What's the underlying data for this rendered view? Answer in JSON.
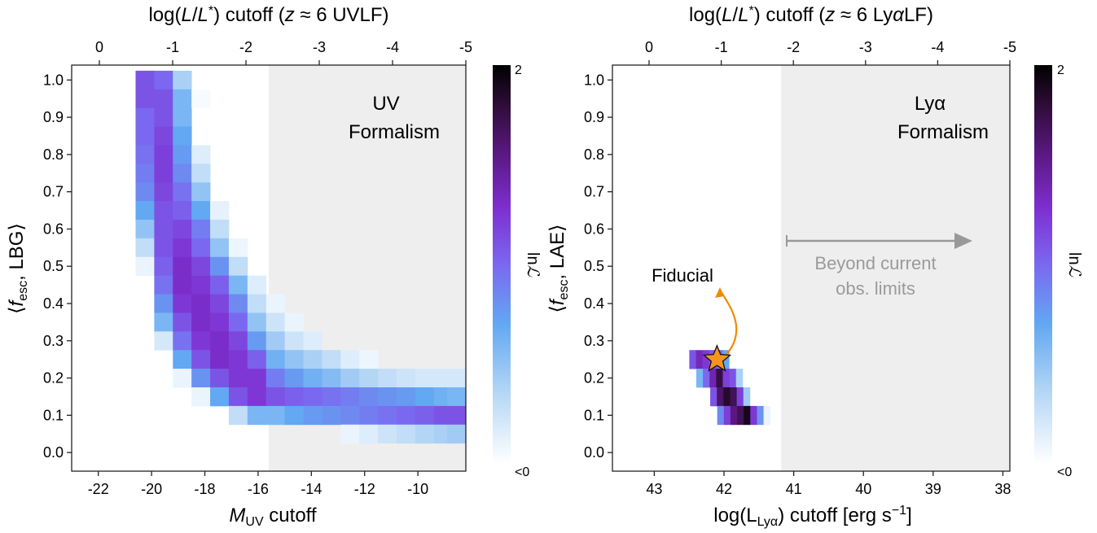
{
  "chart_data": [
    {
      "type": "heatmap",
      "panel": "left",
      "top_axis_label": "log(L/L*) cutoff (z ≈ 6 UVLF)",
      "top_ticks": [
        "0",
        "-1",
        "-2",
        "-3",
        "-4",
        "-5"
      ],
      "xlabel": "M_UV cutoff",
      "xlabel_main": "M",
      "xlabel_sub": "UV",
      "xlabel_rest": " cutoff",
      "x_ticks": [
        "-22",
        "-20",
        "-18",
        "-16",
        "-14",
        "-12",
        "-10"
      ],
      "xlim": [
        -23.0,
        -8.2
      ],
      "ylabel": "⟨f_esc, LBG⟩",
      "ylim": [
        -0.05,
        1.04
      ],
      "y_ticks": [
        "0.0",
        "0.1",
        "0.2",
        "0.3",
        "0.4",
        "0.5",
        "0.6",
        "0.7",
        "0.8",
        "0.9",
        "1.0"
      ],
      "shaded_region_x": [
        -15.6,
        -8.2
      ],
      "annotation": [
        "UV",
        "Formalism"
      ],
      "colorbar": {
        "label": "ln L",
        "max_label": "2",
        "min_label": "<0"
      },
      "cell_width": 0.7,
      "cell_height": 0.05,
      "cells": [
        [
          -20.25,
          1.0,
          0.55
        ],
        [
          -20.25,
          0.95,
          0.55
        ],
        [
          -20.25,
          0.9,
          0.5
        ],
        [
          -20.25,
          0.85,
          0.5
        ],
        [
          -20.25,
          0.8,
          0.48
        ],
        [
          -20.25,
          0.75,
          0.45
        ],
        [
          -20.25,
          0.7,
          0.42
        ],
        [
          -20.25,
          0.65,
          0.35
        ],
        [
          -20.25,
          0.6,
          0.25
        ],
        [
          -20.25,
          0.55,
          0.15
        ],
        [
          -20.25,
          0.5,
          0.05
        ],
        [
          -19.55,
          1.0,
          0.5
        ],
        [
          -19.55,
          0.95,
          0.55
        ],
        [
          -19.55,
          0.9,
          0.55
        ],
        [
          -19.55,
          0.85,
          0.58
        ],
        [
          -19.55,
          0.8,
          0.6
        ],
        [
          -19.55,
          0.75,
          0.6
        ],
        [
          -19.55,
          0.7,
          0.58
        ],
        [
          -19.55,
          0.65,
          0.55
        ],
        [
          -19.55,
          0.6,
          0.55
        ],
        [
          -19.55,
          0.55,
          0.55
        ],
        [
          -19.55,
          0.5,
          0.52
        ],
        [
          -19.55,
          0.45,
          0.48
        ],
        [
          -19.55,
          0.4,
          0.4
        ],
        [
          -19.55,
          0.35,
          0.3
        ],
        [
          -19.55,
          0.3,
          0.1
        ],
        [
          -18.85,
          1.0,
          0.2
        ],
        [
          -18.85,
          0.95,
          0.3
        ],
        [
          -18.85,
          0.9,
          0.3
        ],
        [
          -18.85,
          0.85,
          0.35
        ],
        [
          -18.85,
          0.8,
          0.38
        ],
        [
          -18.85,
          0.75,
          0.42
        ],
        [
          -18.85,
          0.7,
          0.48
        ],
        [
          -18.85,
          0.65,
          0.52
        ],
        [
          -18.85,
          0.6,
          0.58
        ],
        [
          -18.85,
          0.55,
          0.62
        ],
        [
          -18.85,
          0.5,
          0.65
        ],
        [
          -18.85,
          0.45,
          0.65
        ],
        [
          -18.85,
          0.4,
          0.62
        ],
        [
          -18.85,
          0.35,
          0.55
        ],
        [
          -18.85,
          0.3,
          0.48
        ],
        [
          -18.85,
          0.25,
          0.35
        ],
        [
          -18.85,
          0.2,
          0.05
        ],
        [
          -18.15,
          0.95,
          0.02
        ],
        [
          -18.15,
          0.8,
          0.08
        ],
        [
          -18.15,
          0.75,
          0.15
        ],
        [
          -18.15,
          0.7,
          0.25
        ],
        [
          -18.15,
          0.65,
          0.35
        ],
        [
          -18.15,
          0.6,
          0.45
        ],
        [
          -18.15,
          0.55,
          0.5
        ],
        [
          -18.15,
          0.5,
          0.58
        ],
        [
          -18.15,
          0.45,
          0.62
        ],
        [
          -18.15,
          0.4,
          0.65
        ],
        [
          -18.15,
          0.35,
          0.65
        ],
        [
          -18.15,
          0.3,
          0.62
        ],
        [
          -18.15,
          0.25,
          0.55
        ],
        [
          -18.15,
          0.2,
          0.4
        ],
        [
          -18.15,
          0.15,
          0.05
        ],
        [
          -17.45,
          0.65,
          0.06
        ],
        [
          -17.45,
          0.6,
          0.15
        ],
        [
          -17.45,
          0.55,
          0.25
        ],
        [
          -17.45,
          0.5,
          0.4
        ],
        [
          -17.45,
          0.45,
          0.52
        ],
        [
          -17.45,
          0.4,
          0.58
        ],
        [
          -17.45,
          0.35,
          0.62
        ],
        [
          -17.45,
          0.3,
          0.65
        ],
        [
          -17.45,
          0.25,
          0.65
        ],
        [
          -17.45,
          0.2,
          0.55
        ],
        [
          -17.45,
          0.15,
          0.35
        ],
        [
          -16.75,
          0.55,
          0.04
        ],
        [
          -16.75,
          0.5,
          0.15
        ],
        [
          -16.75,
          0.45,
          0.3
        ],
        [
          -16.75,
          0.4,
          0.42
        ],
        [
          -16.75,
          0.35,
          0.5
        ],
        [
          -16.75,
          0.3,
          0.58
        ],
        [
          -16.75,
          0.25,
          0.62
        ],
        [
          -16.75,
          0.2,
          0.62
        ],
        [
          -16.75,
          0.15,
          0.55
        ],
        [
          -16.75,
          0.1,
          0.15
        ],
        [
          -16.05,
          0.45,
          0.08
        ],
        [
          -16.05,
          0.4,
          0.15
        ],
        [
          -16.05,
          0.35,
          0.25
        ],
        [
          -16.05,
          0.3,
          0.38
        ],
        [
          -16.05,
          0.25,
          0.52
        ],
        [
          -16.05,
          0.2,
          0.62
        ],
        [
          -16.05,
          0.15,
          0.62
        ],
        [
          -16.05,
          0.1,
          0.3
        ],
        [
          -15.35,
          0.4,
          0.05
        ],
        [
          -15.35,
          0.35,
          0.12
        ],
        [
          -15.35,
          0.3,
          0.22
        ],
        [
          -15.35,
          0.25,
          0.32
        ],
        [
          -15.35,
          0.2,
          0.45
        ],
        [
          -15.35,
          0.15,
          0.55
        ],
        [
          -15.35,
          0.1,
          0.3
        ],
        [
          -14.65,
          0.35,
          0.05
        ],
        [
          -14.65,
          0.3,
          0.12
        ],
        [
          -14.65,
          0.25,
          0.25
        ],
        [
          -14.65,
          0.2,
          0.38
        ],
        [
          -14.65,
          0.15,
          0.52
        ],
        [
          -14.65,
          0.1,
          0.35
        ],
        [
          -13.95,
          0.3,
          0.08
        ],
        [
          -13.95,
          0.25,
          0.2
        ],
        [
          -13.95,
          0.2,
          0.32
        ],
        [
          -13.95,
          0.15,
          0.5
        ],
        [
          -13.95,
          0.1,
          0.38
        ],
        [
          -13.25,
          0.25,
          0.15
        ],
        [
          -13.25,
          0.2,
          0.28
        ],
        [
          -13.25,
          0.15,
          0.48
        ],
        [
          -13.25,
          0.1,
          0.4
        ],
        [
          -12.55,
          0.25,
          0.08
        ],
        [
          -12.55,
          0.2,
          0.22
        ],
        [
          -12.55,
          0.15,
          0.45
        ],
        [
          -12.55,
          0.1,
          0.42
        ],
        [
          -12.55,
          0.05,
          0.05
        ],
        [
          -11.85,
          0.25,
          0.04
        ],
        [
          -11.85,
          0.2,
          0.18
        ],
        [
          -11.85,
          0.15,
          0.42
        ],
        [
          -11.85,
          0.1,
          0.45
        ],
        [
          -11.85,
          0.05,
          0.08
        ],
        [
          -11.15,
          0.2,
          0.15
        ],
        [
          -11.15,
          0.15,
          0.4
        ],
        [
          -11.15,
          0.1,
          0.48
        ],
        [
          -11.15,
          0.05,
          0.12
        ],
        [
          -10.45,
          0.2,
          0.12
        ],
        [
          -10.45,
          0.15,
          0.38
        ],
        [
          -10.45,
          0.1,
          0.5
        ],
        [
          -10.45,
          0.05,
          0.15
        ],
        [
          -9.75,
          0.2,
          0.1
        ],
        [
          -9.75,
          0.15,
          0.35
        ],
        [
          -9.75,
          0.1,
          0.52
        ],
        [
          -9.75,
          0.05,
          0.18
        ],
        [
          -9.05,
          0.2,
          0.1
        ],
        [
          -9.05,
          0.15,
          0.32
        ],
        [
          -9.05,
          0.1,
          0.55
        ],
        [
          -9.05,
          0.05,
          0.2
        ],
        [
          -8.55,
          0.2,
          0.1
        ],
        [
          -8.55,
          0.15,
          0.3
        ],
        [
          -8.55,
          0.1,
          0.55
        ],
        [
          -8.55,
          0.05,
          0.22
        ]
      ]
    },
    {
      "type": "heatmap",
      "panel": "right",
      "top_axis_label": "log(L/L*) cutoff (z ≈ 6 LyαLF)",
      "top_ticks": [
        "0",
        "-1",
        "-2",
        "-3",
        "-4",
        "-5"
      ],
      "xlabel": "log(L_Lyα) cutoff [erg s^-1]",
      "xlabel_main": "log(L",
      "xlabel_sub": "Lyα",
      "xlabel_rest": ") cutoff [erg s",
      "xlabel_sup": "−1",
      "xlabel_end": "]",
      "x_ticks": [
        "43",
        "42",
        "41",
        "40",
        "39",
        "38"
      ],
      "xlim": [
        43.6,
        37.9
      ],
      "ylabel": "⟨f_esc, LAE⟩",
      "ylim": [
        -0.05,
        1.04
      ],
      "y_ticks": [
        "0.0",
        "0.1",
        "0.2",
        "0.3",
        "0.4",
        "0.5",
        "0.6",
        "0.7",
        "0.8",
        "0.9",
        "1.0"
      ],
      "shaded_region_x": [
        41.18,
        37.9
      ],
      "annotation": [
        "Lyα",
        "Formalism"
      ],
      "arrow_label": [
        "Beyond current",
        "obs. limits"
      ],
      "fiducial": {
        "label": "Fiducial",
        "x": 42.1,
        "y": 0.25
      },
      "colorbar": {
        "label": "ln L",
        "max_label": "2",
        "min_label": "<0"
      },
      "cell_width": 0.095,
      "cell_height": 0.05,
      "cells": [
        [
          42.45,
          0.25,
          0.55
        ],
        [
          42.355,
          0.25,
          0.68
        ],
        [
          42.26,
          0.25,
          0.62
        ],
        [
          42.165,
          0.25,
          0.55
        ],
        [
          42.07,
          0.25,
          0.5
        ],
        [
          41.975,
          0.25,
          0.35
        ],
        [
          42.35,
          0.2,
          0.3
        ],
        [
          42.255,
          0.2,
          0.5
        ],
        [
          42.16,
          0.2,
          0.7
        ],
        [
          42.065,
          0.2,
          0.88
        ],
        [
          41.97,
          0.2,
          0.6
        ],
        [
          41.875,
          0.2,
          0.55
        ],
        [
          41.78,
          0.2,
          0.2
        ],
        [
          42.15,
          0.15,
          0.55
        ],
        [
          42.055,
          0.15,
          0.82
        ],
        [
          41.96,
          0.15,
          0.92
        ],
        [
          41.865,
          0.15,
          0.85
        ],
        [
          41.77,
          0.15,
          0.6
        ],
        [
          41.675,
          0.15,
          0.22
        ],
        [
          42.05,
          0.1,
          0.42
        ],
        [
          41.955,
          0.1,
          0.6
        ],
        [
          41.86,
          0.1,
          0.78
        ],
        [
          41.765,
          0.1,
          0.85
        ],
        [
          41.67,
          0.1,
          0.95
        ],
        [
          41.575,
          0.1,
          0.62
        ],
        [
          41.48,
          0.1,
          0.4
        ],
        [
          41.385,
          0.1,
          0.05
        ]
      ]
    }
  ]
}
